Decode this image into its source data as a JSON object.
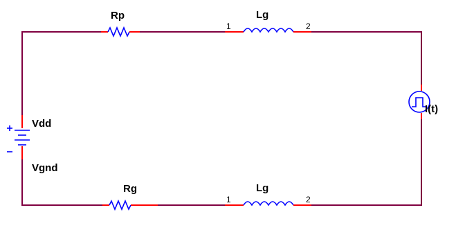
{
  "schematic": {
    "wire_color": "#800040",
    "component_color": "#0000ff",
    "pin_color": "#ff0000",
    "components": {
      "rp": {
        "label": "Rp",
        "icon": "resistor-icon"
      },
      "lg_top": {
        "label": "Lg",
        "icon": "inductor-icon",
        "pin1": "1",
        "pin2": "2"
      },
      "current_source": {
        "label": "I(t)",
        "icon": "pulse-current-source-icon"
      },
      "battery": {
        "label_top": "Vdd",
        "label_bottom": "Vgnd",
        "icon": "battery-icon"
      },
      "rg": {
        "label": "Rg",
        "icon": "resistor-icon"
      },
      "lg_bottom": {
        "label": "Lg",
        "icon": "inductor-icon",
        "pin1": "1",
        "pin2": "2"
      }
    }
  }
}
